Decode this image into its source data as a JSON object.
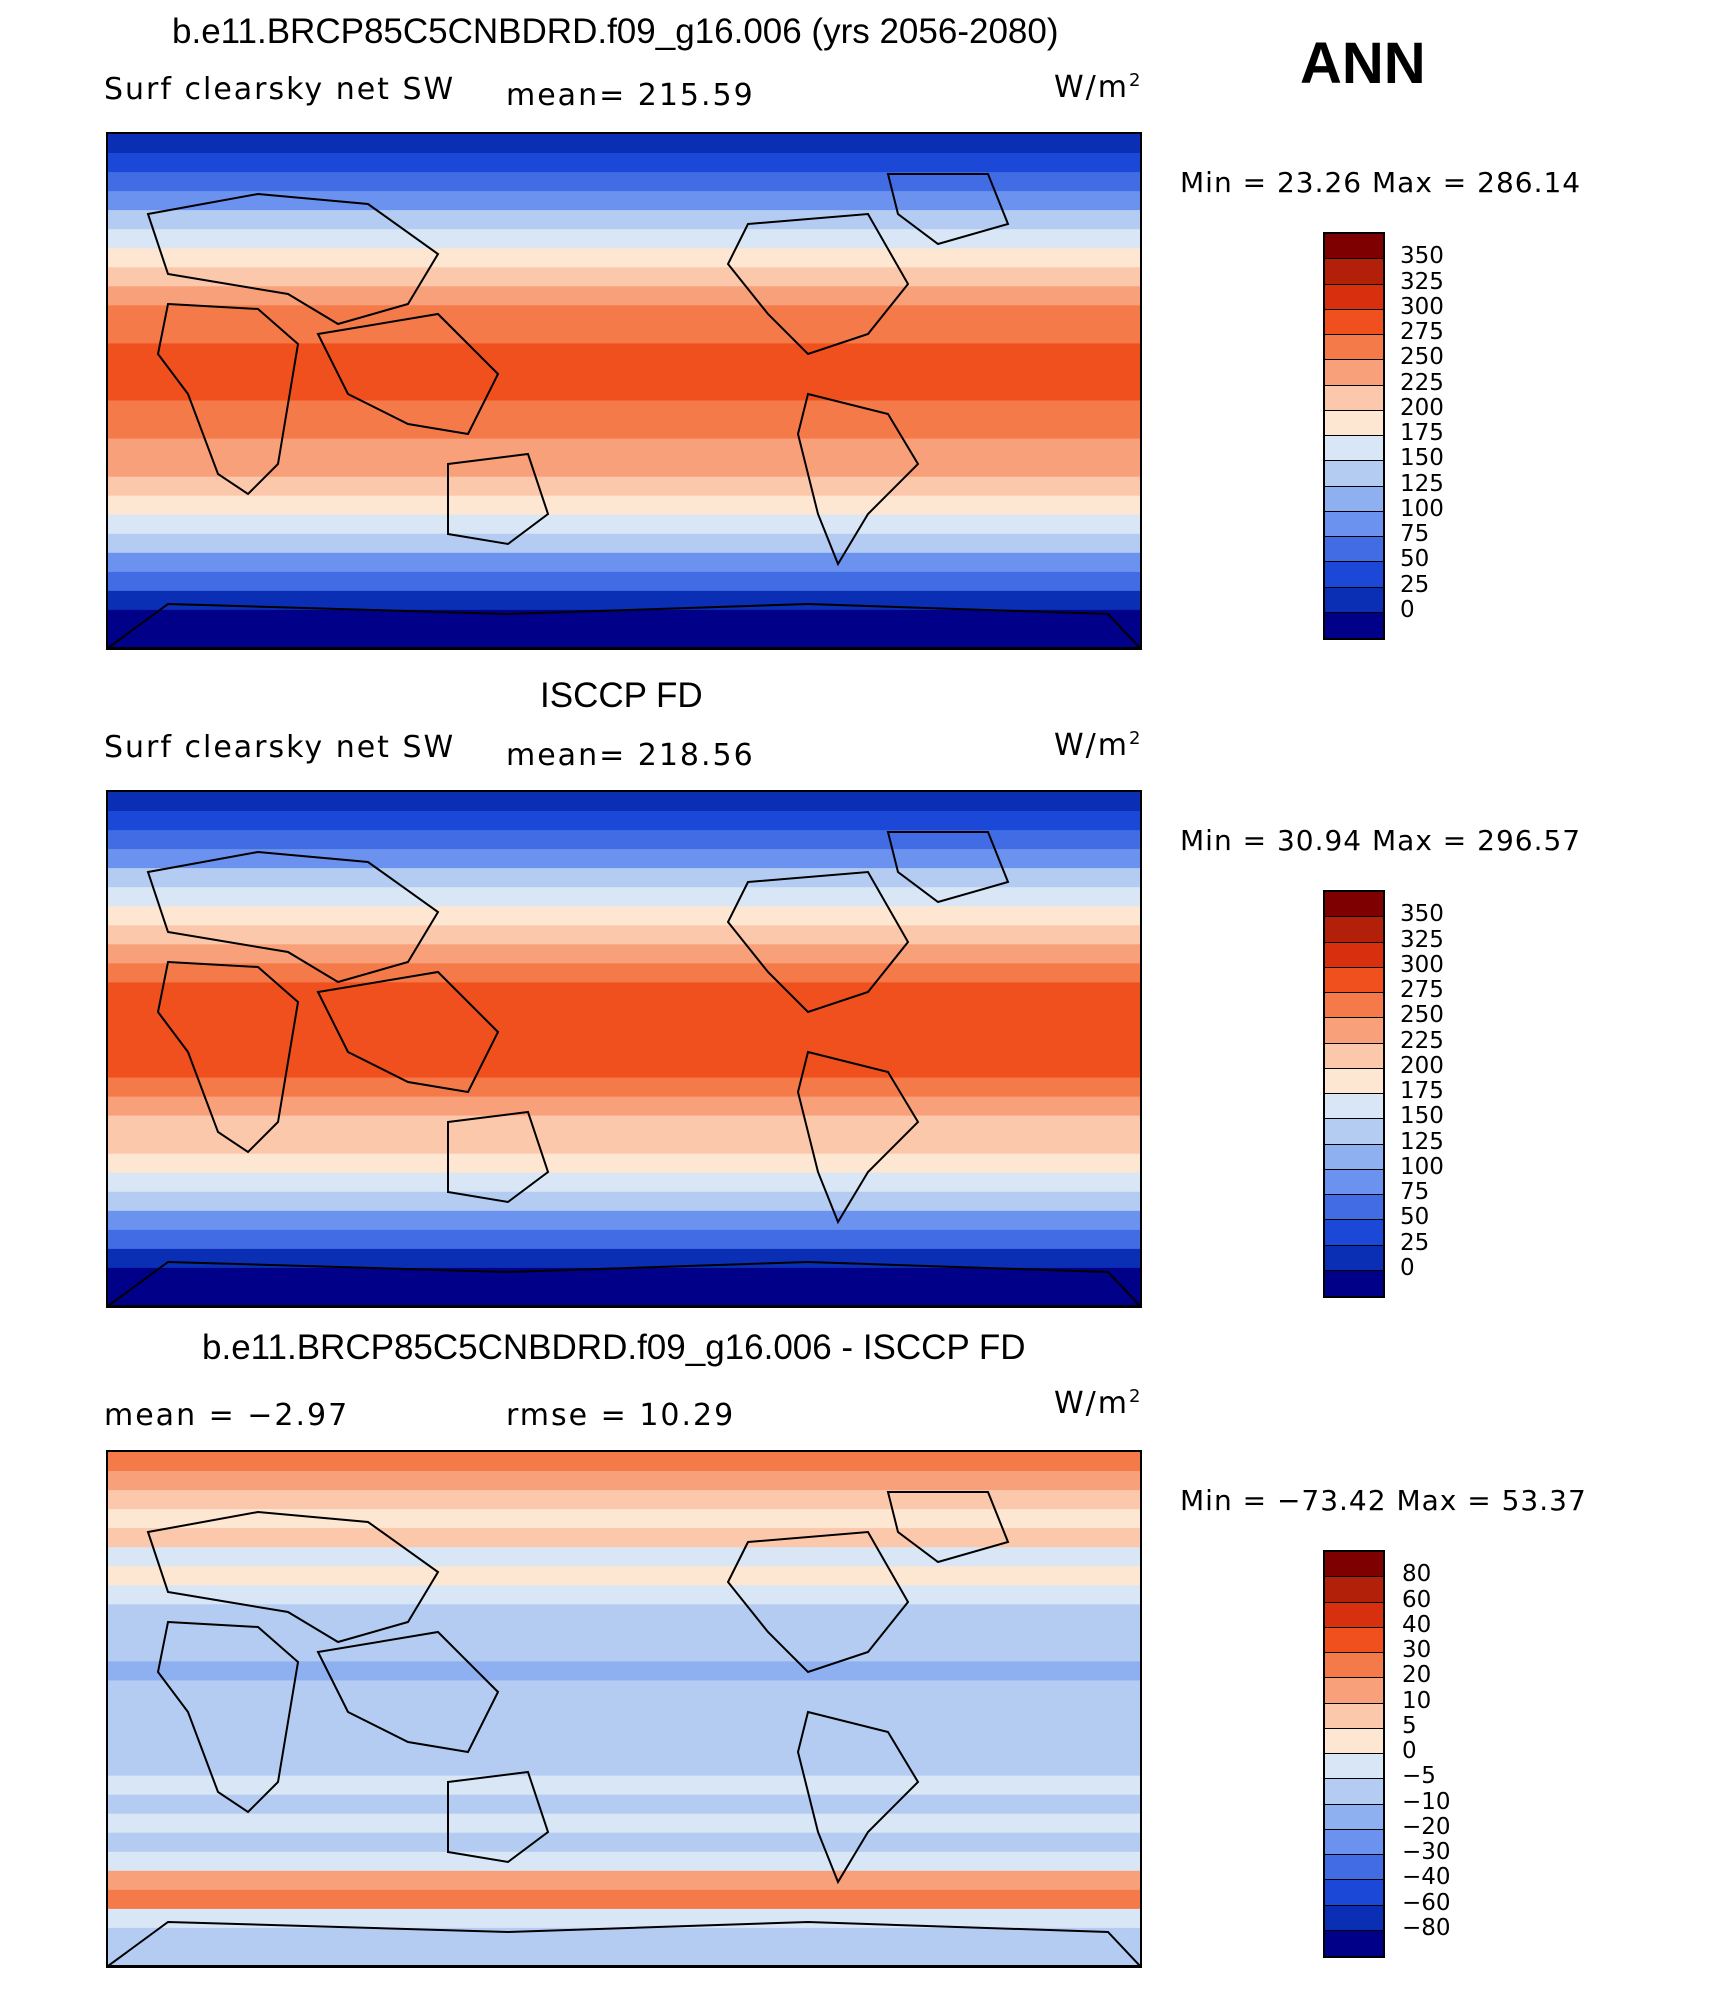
{
  "season": "ANN",
  "panels": [
    {
      "title": "b.e11.BRCP85C5CNBDRD.f09_g16.006 (yrs 2056-2080)",
      "variable": "Surf clearsky net SW",
      "stat": "mean= 215.59",
      "units": "W/m",
      "units_exp": "2",
      "minmax": "Min =   23.26  Max  =  286.14",
      "colorbar": [
        "350",
        "325",
        "300",
        "275",
        "250",
        "225",
        "200",
        "175",
        "150",
        "125",
        "100",
        "75",
        "50",
        "25",
        "0"
      ]
    },
    {
      "title": "ISCCP FD",
      "variable": "Surf clearsky net SW",
      "stat": "mean= 218.56",
      "units": "W/m",
      "units_exp": "2",
      "minmax": "Min =   30.94  Max  =  296.57",
      "colorbar": [
        "350",
        "325",
        "300",
        "275",
        "250",
        "225",
        "200",
        "175",
        "150",
        "125",
        "100",
        "75",
        "50",
        "25",
        "0"
      ]
    },
    {
      "title": "b.e11.BRCP85C5CNBDRD.f09_g16.006 - ISCCP FD",
      "variable": "mean =    −2.97",
      "stat": "rmse =    10.29",
      "units": "W/m",
      "units_exp": "2",
      "minmax": "Min  = −73.42  Max  =    53.37",
      "colorbar": [
        "80",
        "60",
        "40",
        "30",
        "20",
        "10",
        "5",
        "0",
        "−5",
        "−10",
        "−20",
        "−30",
        "−40",
        "−60",
        "−80"
      ]
    }
  ],
  "colors": {
    "scale16": [
      "#7f0000",
      "#b2200a",
      "#d8300f",
      "#f0501e",
      "#f47a4a",
      "#f7a07a",
      "#fbc8ab",
      "#fde6d2",
      "#d8e6f6",
      "#b4ccf2",
      "#8eaff0",
      "#6a92ee",
      "#416ce4",
      "#1c48d8",
      "#0a2eb4",
      "#000088"
    ],
    "land": "#000000"
  }
}
